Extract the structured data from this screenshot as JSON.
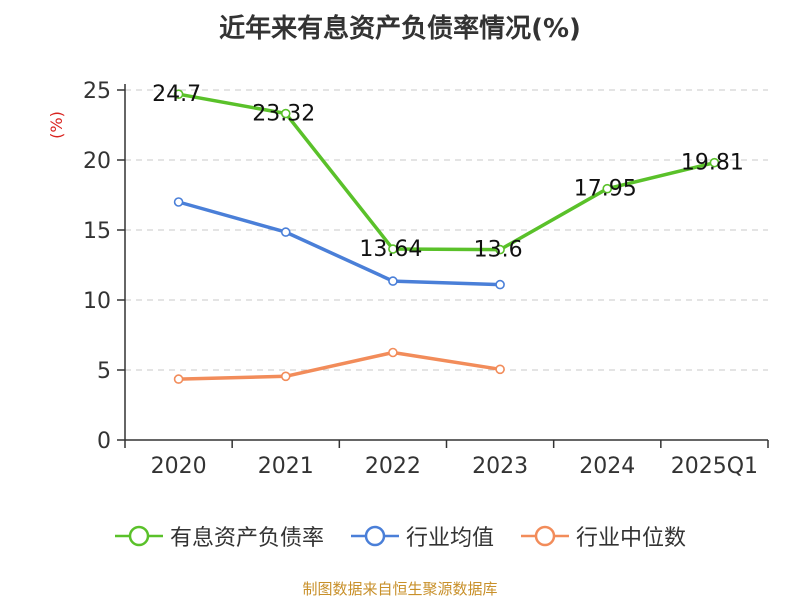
{
  "chart_data": {
    "type": "line",
    "title": "近年来有息资产负债率情况(%)",
    "ylabel": "(%)",
    "xlabel": "",
    "categories": [
      "2020",
      "2021",
      "2022",
      "2023",
      "2024",
      "2025Q1"
    ],
    "ylim": [
      0,
      25
    ],
    "yticks": [
      0,
      5,
      10,
      15,
      20,
      25
    ],
    "grid": true,
    "legend_position": "bottom",
    "series": [
      {
        "name": "有息资产负债率",
        "color": "#5ac12a",
        "values": [
          24.7,
          23.32,
          13.64,
          13.6,
          17.95,
          19.81
        ],
        "labels": [
          "24.7",
          "23.32",
          "13.64",
          "13.6",
          "17.95",
          "19.81"
        ]
      },
      {
        "name": "行业均值",
        "color": "#4a7fd8",
        "values": [
          17.0,
          14.85,
          11.35,
          11.1,
          null,
          null
        ]
      },
      {
        "name": "行业中位数",
        "color": "#f28c5a",
        "values": [
          4.35,
          4.55,
          6.25,
          5.05,
          null,
          null
        ]
      }
    ]
  },
  "footer": {
    "source": "制图数据来自恒生聚源数据库",
    "source_color": "#c8902a"
  }
}
